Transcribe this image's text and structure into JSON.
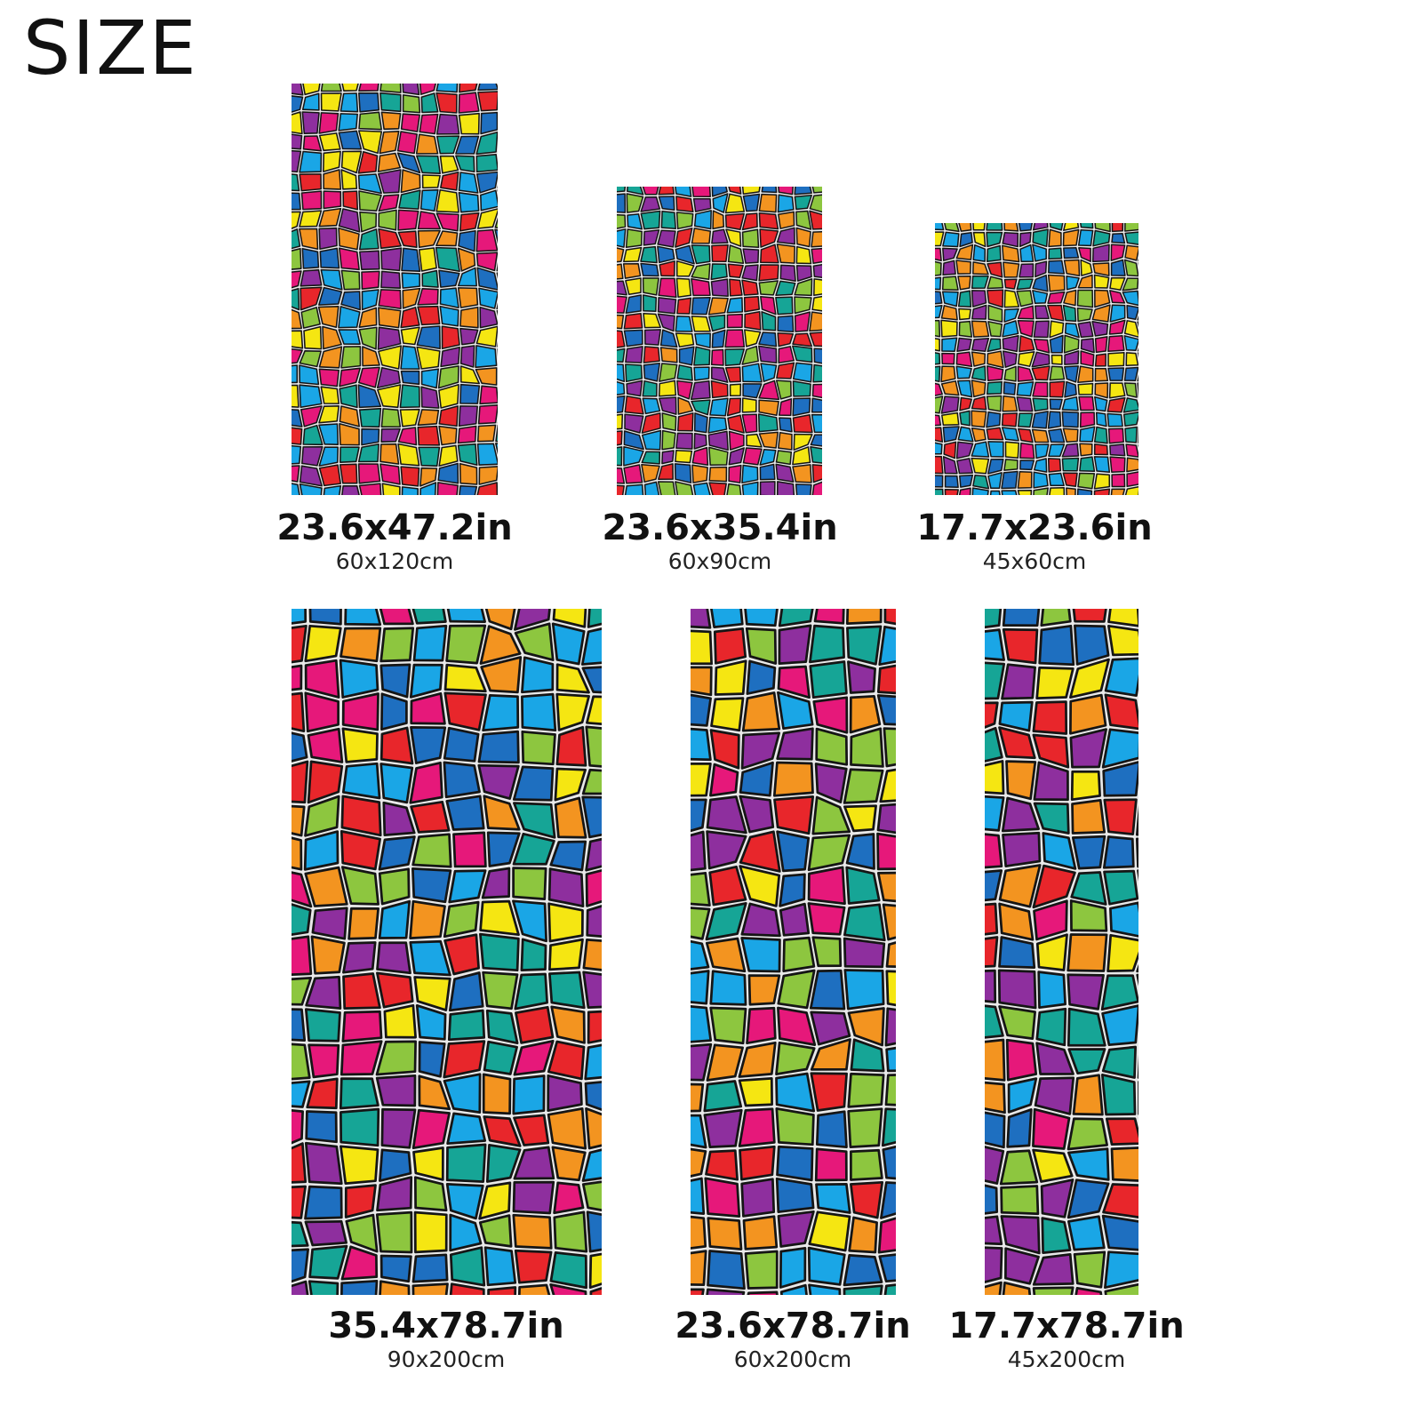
{
  "title": "SIZE",
  "palette": [
    "#1aa6e6",
    "#f5e612",
    "#8dc63f",
    "#f39420",
    "#16a596",
    "#8e2f9e",
    "#e6187a",
    "#e8262b",
    "#1e6fc0"
  ],
  "products": [
    {
      "inches": "23.6x47.2in",
      "cm": "60x120cm"
    },
    {
      "inches": "23.6x35.4in",
      "cm": "60x90cm"
    },
    {
      "inches": "17.7x23.6in",
      "cm": "45x60cm"
    },
    {
      "inches": "35.4x78.7in",
      "cm": "90x200cm"
    },
    {
      "inches": "23.6x78.7in",
      "cm": "60x200cm"
    },
    {
      "inches": "17.7x78.7in",
      "cm": "45x200cm"
    }
  ]
}
